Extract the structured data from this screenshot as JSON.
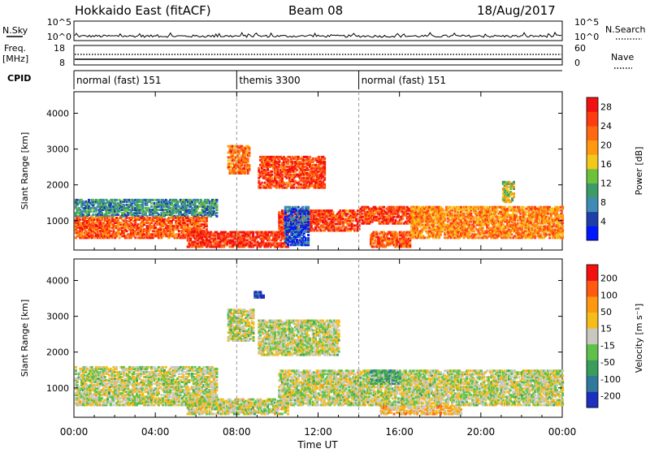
{
  "header": {
    "title": "Hokkaido East (fitACF)",
    "beam": "Beam 08",
    "date": "18/Aug/2017"
  },
  "top_panels": {
    "nsky_label": "N.Sky",
    "nsky_ticks": [
      "10^5",
      "10^0"
    ],
    "nsky_right_ticks": [
      "10^5",
      "10^0"
    ],
    "nsearch_label": "N.Search",
    "freq_label": "Freq.",
    "freq_unit": "[MHz]",
    "freq_ticks": [
      "18",
      "8"
    ],
    "nave_ticks": [
      "60",
      "0"
    ],
    "nave_label": "Nave",
    "cpid_label": "CPID",
    "cpid_segments": [
      {
        "label": "normal (fast) 151",
        "start_hour": 0,
        "end_hour": 8
      },
      {
        "label": "themis 3300",
        "start_hour": 8,
        "end_hour": 14
      },
      {
        "label": "normal (fast) 151",
        "start_hour": 14,
        "end_hour": 24
      }
    ]
  },
  "x_axis": {
    "label": "Time UT",
    "ticks": [
      "00:00",
      "04:00",
      "08:00",
      "12:00",
      "16:00",
      "20:00",
      "00:00"
    ]
  },
  "chart_data": [
    {
      "type": "heatmap",
      "ylabel": "Slant Range [km]",
      "yticks": [
        "1000",
        "2000",
        "3000",
        "4000"
      ],
      "ylim": [
        180,
        4600
      ],
      "xlim_hours": [
        0,
        24
      ],
      "colorbar_label": "Power [dB]",
      "colorbar_ticks": [
        "4",
        "8",
        "12",
        "16",
        "20",
        "24",
        "28"
      ],
      "colorscale": [
        "#0018ff",
        "#1f3fa8",
        "#3e8bb4",
        "#3b9c6a",
        "#6dc23b",
        "#f2c81a",
        "#ff9a10",
        "#ff6a10",
        "#ff3b10",
        "#f21010"
      ],
      "regions": [
        {
          "t0": 0.0,
          "t1": 7.0,
          "r0": 1100,
          "r1": 1600,
          "level": 0.3
        },
        {
          "t0": 0.0,
          "t1": 6.5,
          "r0": 500,
          "r1": 1100,
          "level": 0.8
        },
        {
          "t0": 5.5,
          "t1": 10.5,
          "r0": 250,
          "r1": 700,
          "level": 0.9
        },
        {
          "t0": 7.5,
          "t1": 8.6,
          "r0": 2300,
          "r1": 3100,
          "level": 0.75
        },
        {
          "t0": 9.0,
          "t1": 12.3,
          "r0": 1900,
          "r1": 2800,
          "level": 0.85
        },
        {
          "t0": 10.0,
          "t1": 14.0,
          "r0": 700,
          "r1": 1300,
          "level": 0.85
        },
        {
          "t0": 14.0,
          "t1": 17.0,
          "r0": 900,
          "r1": 1400,
          "level": 0.85
        },
        {
          "t0": 14.5,
          "t1": 16.5,
          "r0": 250,
          "r1": 700,
          "level": 0.8
        },
        {
          "t0": 16.5,
          "t1": 24.0,
          "r0": 500,
          "r1": 1400,
          "level": 0.7
        },
        {
          "t0": 10.3,
          "t1": 11.5,
          "r0": 300,
          "r1": 1400,
          "level": 0.15
        },
        {
          "t0": 21.0,
          "t1": 21.6,
          "r0": 1500,
          "r1": 2100,
          "level": 0.5
        }
      ]
    },
    {
      "type": "heatmap",
      "ylabel": "Slant Range [km]",
      "yticks": [
        "1000",
        "2000",
        "3000",
        "4000"
      ],
      "ylim": [
        180,
        4600
      ],
      "xlim_hours": [
        0,
        24
      ],
      "colorbar_label": "Velocity [m s⁻¹]",
      "colorbar_ticks": [
        "200",
        "100",
        "50",
        "15",
        "-15",
        "-50",
        "-100",
        "-200"
      ],
      "colorscale": [
        "#1c2fbf",
        "#2f7a9c",
        "#3b9c5c",
        "#5ec24a",
        "#c8c8c0",
        "#f5bc1a",
        "#ff9710",
        "#ff5a10",
        "#f21010"
      ],
      "regions": [
        {
          "t0": 0.0,
          "t1": 7.0,
          "r0": 500,
          "r1": 1600,
          "level": 0.5
        },
        {
          "t0": 5.5,
          "t1": 10.5,
          "r0": 250,
          "r1": 700,
          "level": 0.5
        },
        {
          "t0": 7.5,
          "t1": 8.8,
          "r0": 2300,
          "r1": 3200,
          "level": 0.5
        },
        {
          "t0": 9.0,
          "t1": 13.0,
          "r0": 1900,
          "r1": 2900,
          "level": 0.5
        },
        {
          "t0": 10.0,
          "t1": 24.0,
          "r0": 500,
          "r1": 1500,
          "level": 0.5
        },
        {
          "t0": 14.5,
          "t1": 16.0,
          "r0": 1100,
          "r1": 1500,
          "level": 0.32
        },
        {
          "t0": 15.0,
          "t1": 19.0,
          "r0": 250,
          "r1": 500,
          "level": 0.62
        },
        {
          "t0": 8.8,
          "t1": 9.3,
          "r0": 3500,
          "r1": 3700,
          "level": 0.0
        }
      ]
    }
  ]
}
